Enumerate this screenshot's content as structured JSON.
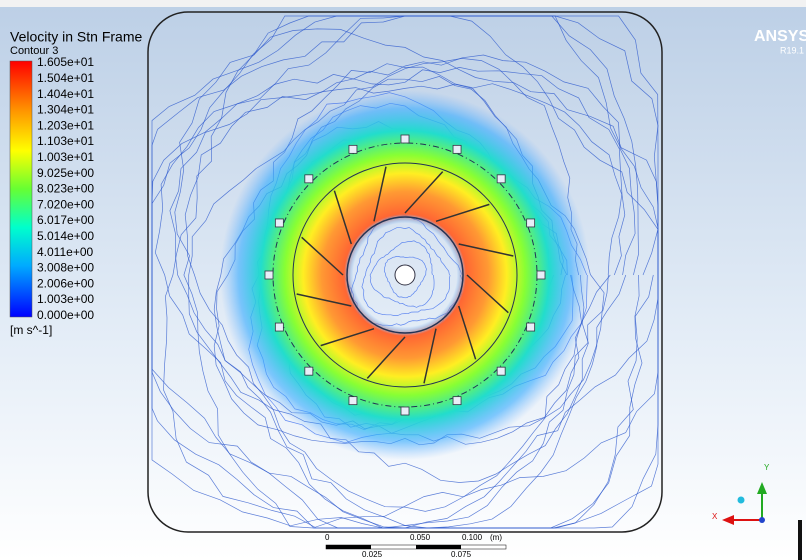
{
  "header": {
    "title": "Velocity in Stn Frame",
    "subtitle": "Contour 3"
  },
  "legend": {
    "labels": [
      "1.605e+01",
      "1.504e+01",
      "1.404e+01",
      "1.304e+01",
      "1.203e+01",
      "1.103e+01",
      "1.003e+01",
      "9.025e+00",
      "8.023e+00",
      "7.020e+00",
      "6.017e+00",
      "5.014e+00",
      "4.011e+00",
      "3.008e+00",
      "2.006e+00",
      "1.003e+00",
      "0.000e+00"
    ],
    "unit": "[m s^-1]"
  },
  "brand": {
    "name": "ANSYS",
    "version": "R19.1"
  },
  "scale_bar": {
    "top_labels": [
      "0",
      "0.050",
      "0.100",
      "(m)"
    ],
    "bottom_labels": [
      "0.025",
      "0.075"
    ]
  },
  "triad": {
    "y_label": "Y",
    "x_label": "X"
  }
}
